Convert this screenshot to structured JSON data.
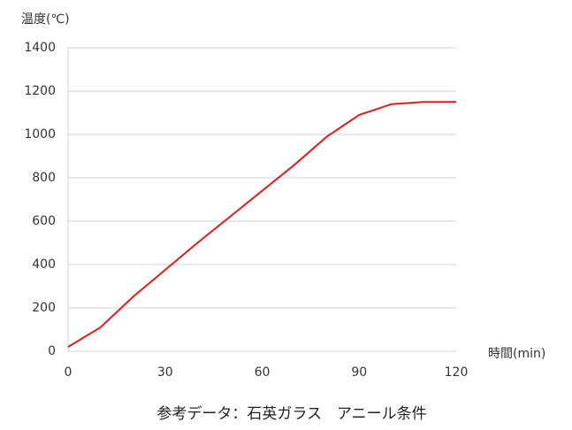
{
  "chart_data": {
    "type": "line",
    "y_label": "温度(℃)",
    "x_label": "時間(min)",
    "caption": "参考データ：石英ガラス　アニール条件",
    "x": [
      0,
      10,
      20,
      30,
      40,
      50,
      60,
      70,
      80,
      90,
      100,
      110,
      120
    ],
    "series": [
      {
        "name": "温度",
        "color": "#e31a1c",
        "values": [
          20,
          110,
          250,
          375,
          500,
          620,
          740,
          860,
          990,
          1090,
          1140,
          1150,
          1150
        ]
      }
    ],
    "xlim": [
      0,
      120
    ],
    "xticks": [
      0,
      30,
      60,
      90,
      120
    ],
    "ylim": [
      0,
      1400
    ],
    "yticks": [
      0,
      200,
      400,
      600,
      800,
      1000,
      1200,
      1400
    ],
    "grid": true
  }
}
